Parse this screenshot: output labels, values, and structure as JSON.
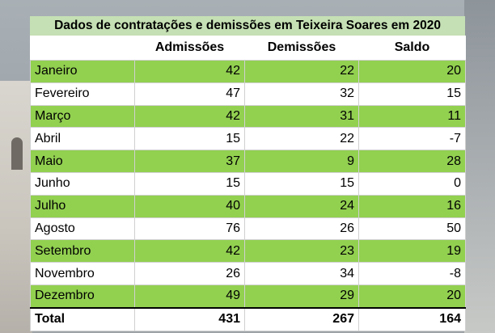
{
  "chart_data": {
    "type": "table",
    "title": "Dados de contratações e demissões em Teixeira Soares em 2020",
    "columns": [
      "",
      "Admissões",
      "Demissões",
      "Saldo"
    ],
    "rows": [
      {
        "label": "Janeiro",
        "values": [
          42,
          22,
          20
        ]
      },
      {
        "label": "Fevereiro",
        "values": [
          47,
          32,
          15
        ]
      },
      {
        "label": "Março",
        "values": [
          42,
          31,
          11
        ]
      },
      {
        "label": " Abril",
        "values": [
          15,
          22,
          -7
        ]
      },
      {
        "label": "Maio",
        "values": [
          37,
          9,
          28
        ]
      },
      {
        "label": "Junho",
        "values": [
          15,
          15,
          0
        ]
      },
      {
        "label": "Julho",
        "values": [
          40,
          24,
          16
        ]
      },
      {
        "label": "Agosto",
        "values": [
          76,
          26,
          50
        ]
      },
      {
        "label": "Setembro",
        "values": [
          42,
          23,
          19
        ]
      },
      {
        "label": "Novembro",
        "values": [
          26,
          34,
          -8
        ]
      },
      {
        "label": "Dezembro",
        "values": [
          49,
          29,
          20
        ]
      }
    ],
    "total": {
      "label": "Total",
      "values": [
        431,
        267,
        164
      ]
    }
  },
  "colors": {
    "title_bg": "#c5e0b4",
    "stripe_green": "#92d050",
    "stripe_white": "#ffffff"
  }
}
